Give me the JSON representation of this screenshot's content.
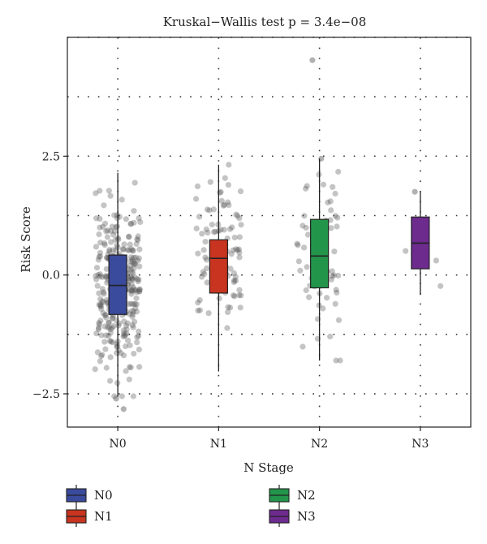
{
  "chart_data": {
    "type": "box",
    "title": "Kruskal−Wallis test p = 3.4e−08",
    "xlabel": "N Stage",
    "ylabel": "Risk Score",
    "categories": [
      "N0",
      "N1",
      "N2",
      "N3"
    ],
    "ylim": [
      -3.2,
      5.0
    ],
    "yticks": [
      {
        "value": -2.5,
        "label": "−2.5"
      },
      {
        "value": 0.0,
        "label": "0.0"
      },
      {
        "value": 2.5,
        "label": "2.5"
      }
    ],
    "grid": "dotted",
    "legend_position": "bottom",
    "series": [
      {
        "name": "N0",
        "color": "#3a4a9c",
        "whisker_low": -2.55,
        "q1": -0.83,
        "median": -0.22,
        "q3": 0.42,
        "whisker_high": 2.15,
        "n_points": 300,
        "outliers": [
          -2.6,
          -2.82
        ]
      },
      {
        "name": "N1",
        "color": "#c8341f",
        "whisker_low": -2.03,
        "q1": -0.38,
        "median": 0.35,
        "q3": 0.74,
        "whisker_high": 2.32,
        "n_points": 90,
        "outliers": []
      },
      {
        "name": "N2",
        "color": "#23954a",
        "whisker_low": -1.8,
        "q1": -0.27,
        "median": 0.4,
        "q3": 1.17,
        "whisker_high": 2.45,
        "n_points": 60,
        "outliers": [
          4.52,
          2.45
        ]
      },
      {
        "name": "N3",
        "color": "#6d2b8e",
        "whisker_low": -0.42,
        "q1": 0.13,
        "median": 0.67,
        "q3": 1.22,
        "whisker_high": 1.75,
        "n_points": 3,
        "outliers": [
          1.75
        ]
      }
    ]
  }
}
